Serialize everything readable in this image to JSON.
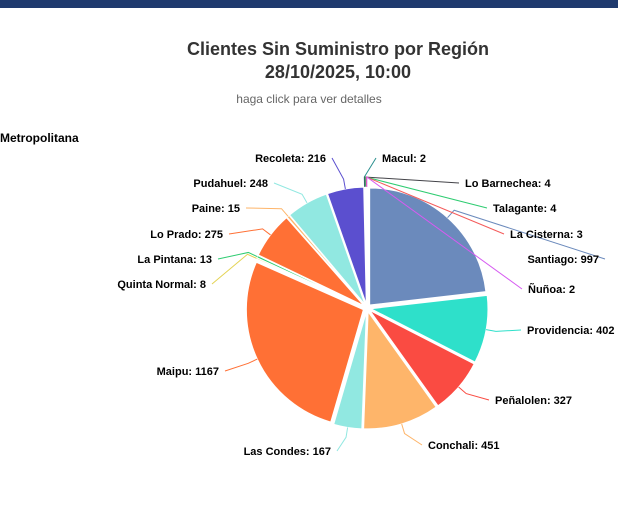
{
  "header": {
    "title_line1": "Clientes Sin Suministro por Región",
    "title_line2": "28/10/2025, 10:00",
    "subtitle": "haga click para ver detalles"
  },
  "region": "Metropolitana",
  "chart_data": {
    "type": "pie",
    "title": "Clientes Sin Suministro por Región 28/10/2025, 10:00",
    "subtitle": "haga click para ver detalles",
    "series_name": "Metropolitana",
    "slices": [
      {
        "label": "Santiago",
        "value": 997,
        "color": "#6b8abc"
      },
      {
        "label": "Providencia",
        "value": 402,
        "color": "#2ee0ca"
      },
      {
        "label": "Peñalolen",
        "value": 327,
        "color": "#fa4b42"
      },
      {
        "label": "Conchali",
        "value": 451,
        "color": "#feb56a"
      },
      {
        "label": "Las Condes",
        "value": 167,
        "color": "#91e8e1"
      },
      {
        "label": "Maipu",
        "value": 1167,
        "color": "#ff7035"
      },
      {
        "label": "Quinta Normal",
        "value": 8,
        "color": "#e4d354"
      },
      {
        "label": "La Pintana",
        "value": 13,
        "color": "#2ecc71"
      },
      {
        "label": "Lo Prado",
        "value": 275,
        "color": "#ff7035"
      },
      {
        "label": "Paine",
        "value": 15,
        "color": "#feb56a"
      },
      {
        "label": "Pudahuel",
        "value": 248,
        "color": "#91e8e1"
      },
      {
        "label": "Recoleta",
        "value": 216,
        "color": "#5b4fcf"
      },
      {
        "label": "Macul",
        "value": 2,
        "color": "#2b908f"
      },
      {
        "label": "Lo Barnechea",
        "value": 4,
        "color": "#434348"
      },
      {
        "label": "Talagante",
        "value": 4,
        "color": "#2ecc71"
      },
      {
        "label": "La Cisterna",
        "value": 3,
        "color": "#f45b5b"
      },
      {
        "label": "Ñuñoa",
        "value": 2,
        "color": "#d65bf1"
      }
    ]
  }
}
